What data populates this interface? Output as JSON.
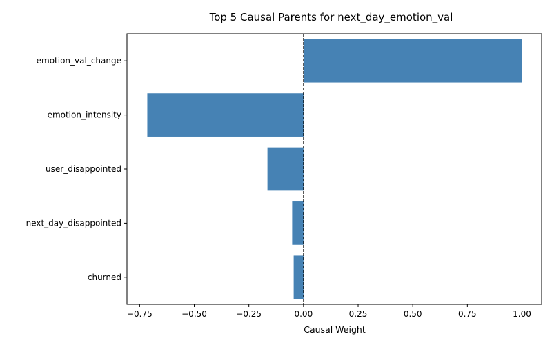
{
  "chart_data": {
    "type": "bar",
    "orientation": "horizontal",
    "title": "Top 5 Causal Parents for next_day_emotion_val",
    "xlabel": "Causal Weight",
    "ylabel": "",
    "categories": [
      "emotion_val_change",
      "emotion_intensity",
      "user_disappointed",
      "next_day_disappointed",
      "churned"
    ],
    "values": [
      1.0,
      -0.715,
      -0.165,
      -0.052,
      -0.045
    ],
    "xlim": [
      -0.808,
      1.09
    ],
    "xticks": [
      -0.75,
      -0.5,
      -0.25,
      0.0,
      0.25,
      0.5,
      0.75,
      1.0
    ],
    "xtick_labels": [
      "−0.75",
      "−0.50",
      "−0.25",
      "0.00",
      "0.25",
      "0.50",
      "0.75",
      "1.00"
    ],
    "bar_color": "#4682b4",
    "zero_line": {
      "value": 0,
      "style": "dashed",
      "color": "#000000"
    },
    "grid": false,
    "legend": "none"
  }
}
